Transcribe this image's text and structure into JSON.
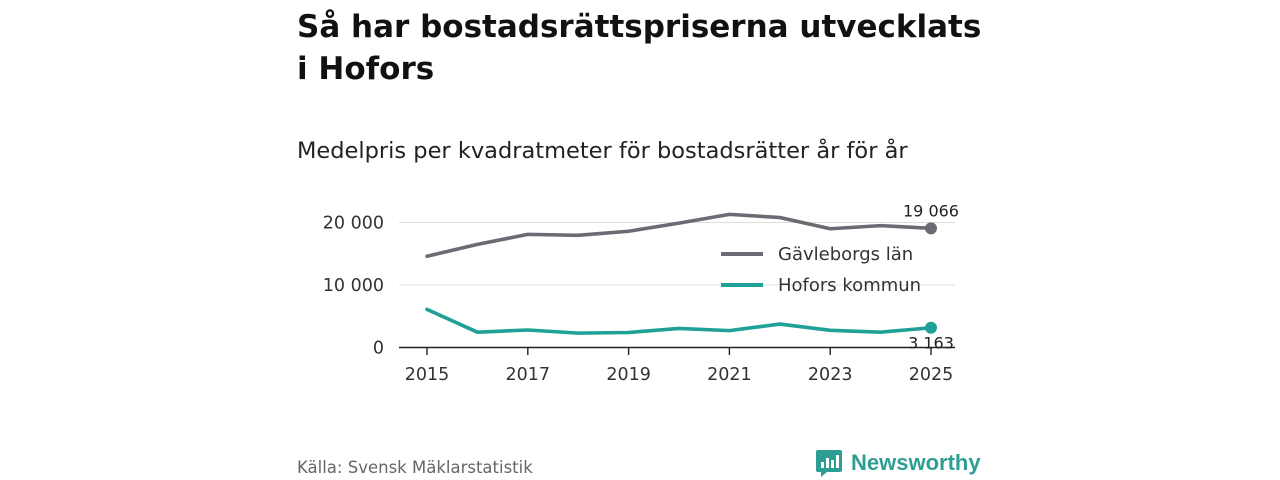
{
  "chart_data": {
    "type": "line",
    "title": "Så har bostadsrättspriserna utvecklats i Hofors",
    "subtitle": "Medelpris per kvadratmeter för bostadsrätter år för år",
    "x": [
      2015,
      2016,
      2017,
      2018,
      2019,
      2020,
      2021,
      2022,
      2023,
      2024,
      2025
    ],
    "x_ticks": [
      "2015",
      "2017",
      "2019",
      "2021",
      "2023",
      "2025"
    ],
    "y_ticks": [
      "0",
      "10 000",
      "20 000"
    ],
    "ylim": [
      0,
      22000
    ],
    "grid": "horizontal",
    "legend_position": "right",
    "series": [
      {
        "name": "Gävleborgs län",
        "color": "#6b6b73",
        "values": [
          14600,
          16500,
          18100,
          17950,
          18600,
          19900,
          21300,
          20800,
          19000,
          19500,
          19066
        ],
        "end_label": "19 066"
      },
      {
        "name": "Hofors kommun",
        "color": "#1fa198",
        "values": [
          6100,
          2450,
          2800,
          2300,
          2400,
          3050,
          2700,
          3750,
          2750,
          2450,
          3163
        ],
        "end_label": "3 163"
      }
    ]
  },
  "source": "Källa: Svensk Mäklarstatistik",
  "brand": {
    "name": "Newsworthy",
    "color": "#2e9e93"
  }
}
